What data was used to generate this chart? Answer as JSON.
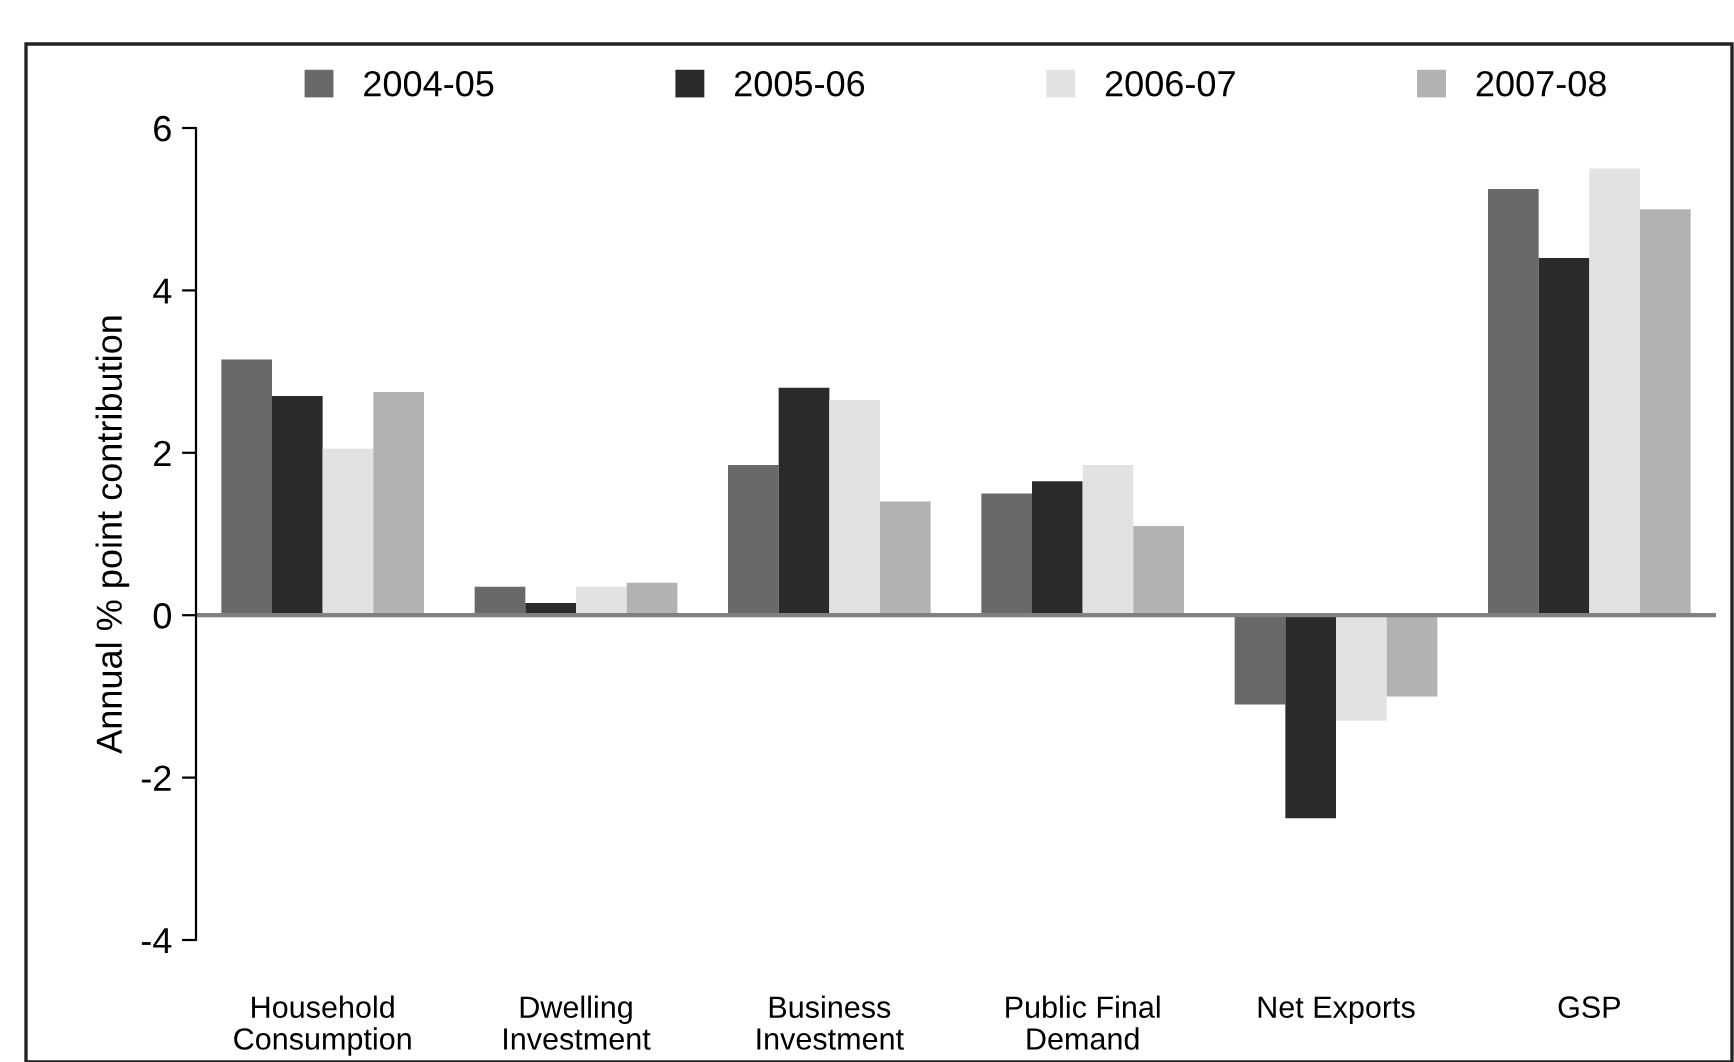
{
  "chart_data": {
    "type": "bar",
    "ylabel": "Annual % point contribution",
    "categories": [
      "Household\nConsumption",
      "Dwelling\nInvestment",
      "Business\nInvestment",
      "Public Final\nDemand",
      "Net Exports",
      "GSP"
    ],
    "series": [
      {
        "name": "2004-05",
        "color": "#696969",
        "values": [
          3.15,
          0.35,
          1.85,
          1.5,
          -1.1,
          5.25
        ]
      },
      {
        "name": "2005-06",
        "color": "#2a2a2a",
        "values": [
          2.7,
          0.15,
          2.8,
          1.65,
          -2.5,
          4.4
        ]
      },
      {
        "name": "2006-07",
        "color": "#e2e2e2",
        "values": [
          2.05,
          0.35,
          2.65,
          1.85,
          -1.3,
          5.5
        ]
      },
      {
        "name": "2007-08",
        "color": "#b2b2b2",
        "values": [
          2.75,
          0.4,
          1.4,
          1.1,
          -1.0,
          5.0
        ]
      }
    ],
    "ylim": [
      -4,
      6
    ],
    "yticks": [
      -4,
      -2,
      0,
      2,
      4,
      6
    ],
    "grid": false,
    "ref_lines": [
      {
        "axis": "y",
        "value": 0,
        "color": "#808080"
      }
    ],
    "legend": "top"
  }
}
